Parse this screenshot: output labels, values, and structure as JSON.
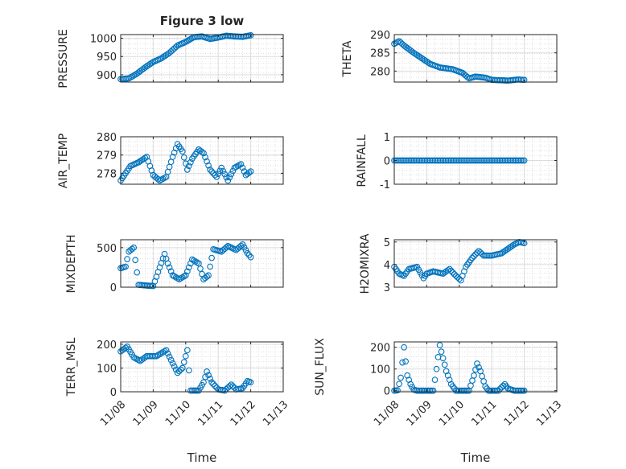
{
  "figure": {
    "title": "Figure 3 low"
  },
  "chart_data": [
    {
      "type": "scatter",
      "id": "pressure",
      "ylabel": "PRESSURE",
      "xlabel": "",
      "ylim": [
        880,
        1010
      ],
      "yticks": [
        900,
        950,
        1000
      ],
      "xlim": [
        0,
        5
      ],
      "series": [
        {
          "kp": [
            [
              0.0,
              888
            ],
            [
              0.25,
              890
            ],
            [
              0.5,
              903
            ],
            [
              0.75,
              920
            ],
            [
              1.0,
              935
            ],
            [
              1.25,
              945
            ],
            [
              1.5,
              960
            ],
            [
              1.75,
              980
            ],
            [
              2.0,
              990
            ],
            [
              2.25,
              1003
            ],
            [
              2.5,
              1005
            ],
            [
              2.75,
              998
            ],
            [
              3.0,
              1002
            ],
            [
              3.25,
              1007
            ],
            [
              3.5,
              1005
            ],
            [
              3.75,
              1004
            ],
            [
              4.0,
              1008
            ]
          ]
        }
      ],
      "grid": true
    },
    {
      "type": "scatter",
      "id": "theta",
      "ylabel": "THETA",
      "xlabel": "",
      "ylim": [
        277,
        290
      ],
      "yticks": [
        280,
        285,
        290
      ],
      "xlim": [
        0,
        5
      ],
      "series": [
        {
          "kp": [
            [
              0.0,
              287.5
            ],
            [
              0.15,
              288.2
            ],
            [
              0.3,
              287
            ],
            [
              0.6,
              285
            ],
            [
              0.85,
              283.5
            ],
            [
              1.1,
              282
            ],
            [
              1.4,
              281
            ],
            [
              1.8,
              280.5
            ],
            [
              2.1,
              279.5
            ],
            [
              2.3,
              278
            ],
            [
              2.5,
              278.5
            ],
            [
              2.8,
              278.2
            ],
            [
              3.0,
              277.6
            ],
            [
              3.5,
              277.4
            ],
            [
              3.8,
              277.7
            ],
            [
              4.0,
              277.6
            ]
          ]
        }
      ],
      "grid": true
    },
    {
      "type": "scatter",
      "id": "air_temp",
      "ylabel": "AIR_TEMP",
      "xlabel": "",
      "ylim": [
        277.4,
        280
      ],
      "yticks": [
        278,
        279,
        280
      ],
      "xlim": [
        0,
        5
      ],
      "series": [
        {
          "kp": [
            [
              0.0,
              277.6
            ],
            [
              0.3,
              278.4
            ],
            [
              0.55,
              278.6
            ],
            [
              0.8,
              278.9
            ],
            [
              1.0,
              277.9
            ],
            [
              1.2,
              277.6
            ],
            [
              1.4,
              277.8
            ],
            [
              1.6,
              278.9
            ],
            [
              1.75,
              279.6
            ],
            [
              1.9,
              279.2
            ],
            [
              2.05,
              278.2
            ],
            [
              2.2,
              278.8
            ],
            [
              2.4,
              279.3
            ],
            [
              2.55,
              279.1
            ],
            [
              2.75,
              278.2
            ],
            [
              2.95,
              277.8
            ],
            [
              3.1,
              278.3
            ],
            [
              3.3,
              277.6
            ],
            [
              3.5,
              278.3
            ],
            [
              3.7,
              278.5
            ],
            [
              3.85,
              277.9
            ],
            [
              4.0,
              278.1
            ]
          ]
        }
      ],
      "grid": true
    },
    {
      "type": "scatter",
      "id": "rainfall",
      "ylabel": "RAINFALL",
      "xlabel": "",
      "ylim": [
        -1,
        1
      ],
      "yticks": [
        -1,
        0,
        1
      ],
      "xlim": [
        0,
        5
      ],
      "series": [
        {
          "kp": [
            [
              0.0,
              0
            ],
            [
              4.0,
              0
            ]
          ]
        }
      ],
      "grid": true
    },
    {
      "type": "scatter",
      "id": "mixdepth",
      "ylabel": "MIXDEPTH",
      "xlabel": "",
      "ylim": [
        0,
        600
      ],
      "yticks": [
        0,
        500
      ],
      "xlim": [
        0,
        5
      ],
      "series": [
        {
          "kp": [
            [
              0.0,
              240
            ],
            [
              0.15,
              260
            ],
            [
              0.25,
              450
            ],
            [
              0.4,
              500
            ],
            [
              0.55,
              30
            ],
            [
              0.8,
              20
            ],
            [
              1.0,
              15
            ],
            [
              1.2,
              250
            ],
            [
              1.35,
              420
            ],
            [
              1.45,
              300
            ],
            [
              1.6,
              150
            ],
            [
              1.8,
              100
            ],
            [
              2.0,
              150
            ],
            [
              2.2,
              350
            ],
            [
              2.4,
              300
            ],
            [
              2.55,
              100
            ],
            [
              2.7,
              150
            ],
            [
              2.85,
              480
            ],
            [
              3.1,
              450
            ],
            [
              3.3,
              520
            ],
            [
              3.55,
              470
            ],
            [
              3.75,
              540
            ],
            [
              3.9,
              430
            ],
            [
              4.0,
              380
            ]
          ]
        }
      ],
      "grid": true
    },
    {
      "type": "scatter",
      "id": "h2omixra",
      "ylabel": "H2OMIXRA",
      "xlabel": "",
      "ylim": [
        3,
        5.1
      ],
      "yticks": [
        3,
        4,
        5
      ],
      "xlim": [
        0,
        5
      ],
      "series": [
        {
          "kp": [
            [
              0.0,
              3.9
            ],
            [
              0.15,
              3.6
            ],
            [
              0.3,
              3.5
            ],
            [
              0.45,
              3.8
            ],
            [
              0.7,
              3.9
            ],
            [
              0.9,
              3.4
            ],
            [
              1.0,
              3.6
            ],
            [
              1.2,
              3.7
            ],
            [
              1.5,
              3.6
            ],
            [
              1.7,
              3.8
            ],
            [
              1.9,
              3.5
            ],
            [
              2.05,
              3.3
            ],
            [
              2.2,
              3.9
            ],
            [
              2.4,
              4.3
            ],
            [
              2.6,
              4.6
            ],
            [
              2.75,
              4.4
            ],
            [
              3.0,
              4.4
            ],
            [
              3.3,
              4.5
            ],
            [
              3.5,
              4.7
            ],
            [
              3.7,
              4.9
            ],
            [
              3.85,
              5.0
            ],
            [
              4.0,
              4.95
            ]
          ]
        }
      ],
      "grid": true
    },
    {
      "type": "scatter",
      "id": "terr_msl",
      "ylabel": "TERR_MSL",
      "xlabel": "Time",
      "ylim": [
        0,
        210
      ],
      "yticks": [
        0,
        100,
        200
      ],
      "xlim": [
        0,
        5
      ],
      "xticks": [
        "11/08",
        "11/09",
        "11/10",
        "11/11",
        "11/12",
        "11/13"
      ],
      "series": [
        {
          "kp": [
            [
              0.0,
              170
            ],
            [
              0.2,
              190
            ],
            [
              0.4,
              145
            ],
            [
              0.6,
              130
            ],
            [
              0.8,
              150
            ],
            [
              1.1,
              150
            ],
            [
              1.4,
              175
            ],
            [
              1.6,
              120
            ],
            [
              1.75,
              80
            ],
            [
              1.9,
              100
            ],
            [
              2.05,
              175
            ],
            [
              2.15,
              5
            ],
            [
              2.4,
              5
            ],
            [
              2.55,
              40
            ],
            [
              2.65,
              85
            ],
            [
              2.8,
              40
            ],
            [
              3.0,
              10
            ],
            [
              3.2,
              5
            ],
            [
              3.4,
              30
            ],
            [
              3.55,
              10
            ],
            [
              3.75,
              15
            ],
            [
              3.9,
              45
            ],
            [
              4.0,
              40
            ]
          ]
        }
      ],
      "grid": true
    },
    {
      "type": "scatter",
      "id": "sun_flux",
      "ylabel": "SUN_FLUX",
      "xlabel": "Time",
      "ylim": [
        -5,
        225
      ],
      "yticks": [
        0,
        100,
        200
      ],
      "xlim": [
        0,
        5
      ],
      "xticks": [
        "11/08",
        "11/09",
        "11/10",
        "11/11",
        "11/12",
        "11/13"
      ],
      "series": [
        {
          "kp": [
            [
              0.0,
              0
            ],
            [
              0.1,
              2
            ],
            [
              0.2,
              60
            ],
            [
              0.3,
              200
            ],
            [
              0.4,
              70
            ],
            [
              0.5,
              30
            ],
            [
              0.6,
              5
            ],
            [
              0.7,
              0
            ],
            [
              1.2,
              0
            ],
            [
              1.3,
              100
            ],
            [
              1.4,
              210
            ],
            [
              1.5,
              150
            ],
            [
              1.6,
              90
            ],
            [
              1.75,
              30
            ],
            [
              1.9,
              0
            ],
            [
              2.3,
              0
            ],
            [
              2.45,
              70
            ],
            [
              2.55,
              125
            ],
            [
              2.65,
              90
            ],
            [
              2.8,
              20
            ],
            [
              2.9,
              0
            ],
            [
              3.2,
              0
            ],
            [
              3.4,
              30
            ],
            [
              3.5,
              10
            ],
            [
              3.7,
              0
            ],
            [
              4.0,
              0
            ]
          ]
        }
      ],
      "grid": true
    }
  ]
}
